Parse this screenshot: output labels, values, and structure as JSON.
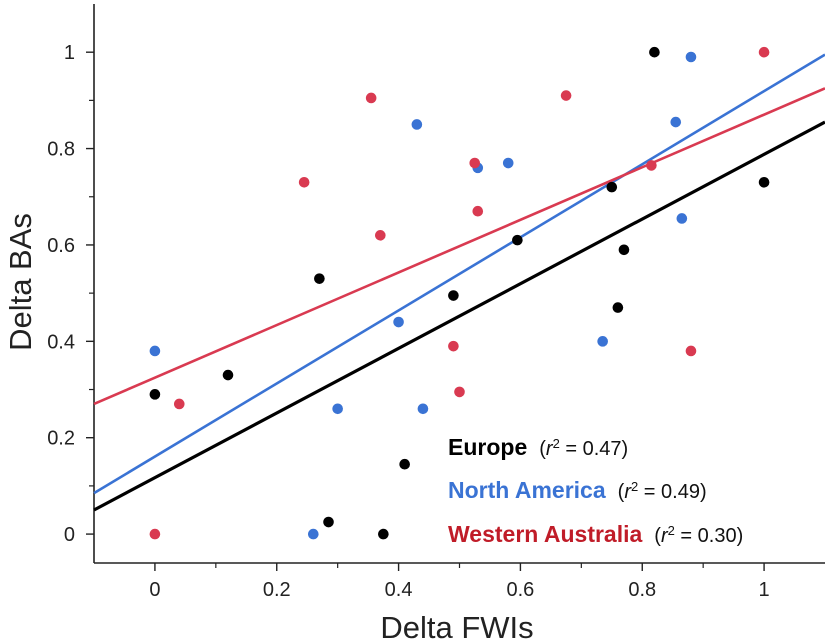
{
  "chart_data": {
    "type": "scatter",
    "title": "",
    "xlabel": "Delta FWIs",
    "ylabel": "Delta BAs",
    "xlim": [
      -0.1,
      1.1
    ],
    "ylim": [
      -0.06,
      1.1
    ],
    "xticks": [
      0,
      0.2,
      0.4,
      0.6,
      0.8,
      1
    ],
    "xtick_labels": [
      "0",
      "0.2",
      "0.4",
      "0.6",
      "0.8",
      "1"
    ],
    "yticks": [
      0,
      0.2,
      0.4,
      0.6,
      0.8,
      1
    ],
    "ytick_labels": [
      "0",
      "0.2",
      "0.4",
      "0.6",
      "0.8",
      "1"
    ],
    "grid": false,
    "legend_position": "bottom-right",
    "series": [
      {
        "name": "Europe",
        "stat": "(r² = 0.47)",
        "stat_prefix": "(",
        "stat_r": "r",
        "stat_sup": "2",
        "stat_rest": " = 0.47)",
        "color": "#000000",
        "points": [
          [
            0,
            0.29
          ],
          [
            0.12,
            0.33
          ],
          [
            0.27,
            0.53
          ],
          [
            0.285,
            0.025
          ],
          [
            0.375,
            0
          ],
          [
            0.41,
            0.145
          ],
          [
            0.49,
            0.495
          ],
          [
            0.595,
            0.61
          ],
          [
            0.75,
            0.72
          ],
          [
            0.76,
            0.47
          ],
          [
            0.77,
            0.59
          ],
          [
            0.82,
            1.0
          ],
          [
            1.0,
            0.73
          ]
        ],
        "fit_line": {
          "x": [
            -0.1,
            1.1
          ],
          "y": [
            0.05,
            0.855
          ]
        }
      },
      {
        "name": "North America",
        "stat": "(r² = 0.49)",
        "stat_prefix": "(",
        "stat_r": "r",
        "stat_sup": "2",
        "stat_rest": " = 0.49)",
        "color": "#3a73d4",
        "points": [
          [
            0,
            0.38
          ],
          [
            0.26,
            0
          ],
          [
            0.3,
            0.26
          ],
          [
            0.4,
            0.44
          ],
          [
            0.43,
            0.85
          ],
          [
            0.44,
            0.26
          ],
          [
            0.53,
            0.76
          ],
          [
            0.58,
            0.77
          ],
          [
            0.735,
            0.4
          ],
          [
            0.855,
            0.855
          ],
          [
            0.865,
            0.655
          ],
          [
            0.88,
            0.99
          ]
        ],
        "fit_line": {
          "x": [
            -0.1,
            1.1
          ],
          "y": [
            0.085,
            0.995
          ]
        }
      },
      {
        "name": "Western Australia",
        "stat": "(r² = 0.30)",
        "stat_prefix": "(",
        "stat_r": "r",
        "stat_sup": "2",
        "stat_rest": " = 0.30)",
        "color": "#d93a51",
        "points": [
          [
            0,
            0
          ],
          [
            0.04,
            0.27
          ],
          [
            0.245,
            0.73
          ],
          [
            0.355,
            0.905
          ],
          [
            0.37,
            0.62
          ],
          [
            0.49,
            0.39
          ],
          [
            0.5,
            0.295
          ],
          [
            0.525,
            0.77
          ],
          [
            0.53,
            0.67
          ],
          [
            0.675,
            0.91
          ],
          [
            0.815,
            0.765
          ],
          [
            0.88,
            0.38
          ],
          [
            1.0,
            1.0
          ]
        ],
        "fit_line": {
          "x": [
            -0.1,
            1.1
          ],
          "y": [
            0.27,
            0.925
          ]
        }
      }
    ]
  },
  "legend_colors": {
    "Europe": "#000000",
    "North America": "#3a73d4",
    "Western Australia": "#c01c28"
  }
}
